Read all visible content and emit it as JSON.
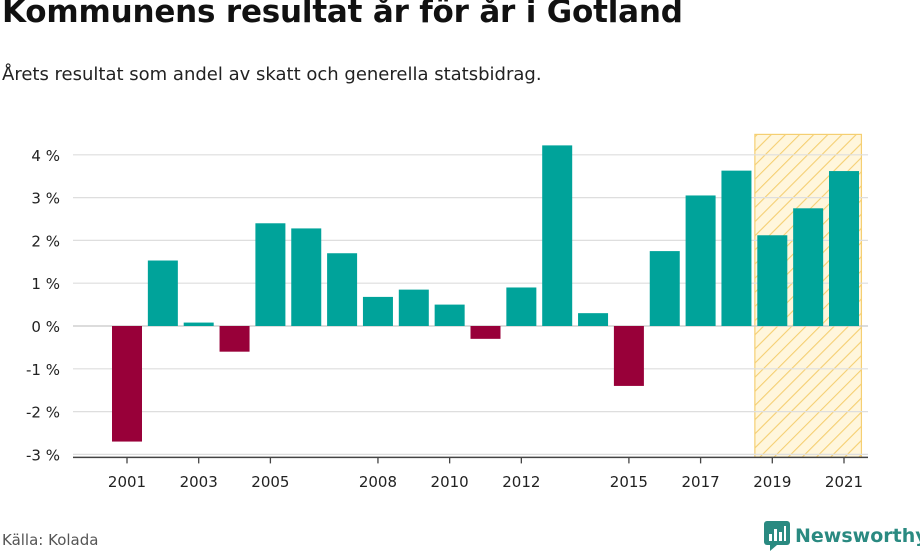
{
  "header": {
    "title": "Kommunens resultat år för år i Gotland",
    "subtitle": "Årets resultat som andel av skatt och generella statsbidrag."
  },
  "footer": {
    "source": "Källa: Kolada",
    "brand": "Newsworthy"
  },
  "colors": {
    "positive": "#00a39a",
    "negative": "#980039",
    "highlight_fill": "#fff6dc",
    "highlight_stroke": "#f5cf72",
    "brand": "#2a8a81"
  },
  "chart_data": {
    "type": "bar",
    "categories": [
      "2001",
      "2002",
      "2003",
      "2004",
      "2005",
      "2006",
      "2007",
      "2008",
      "2009",
      "2010",
      "2011",
      "2012",
      "2013",
      "2014",
      "2015",
      "2016",
      "2017",
      "2018",
      "2019",
      "2020",
      "2021"
    ],
    "values": [
      -2.7,
      1.53,
      0.08,
      -0.6,
      2.4,
      2.28,
      1.7,
      0.68,
      0.85,
      0.5,
      -0.3,
      0.9,
      4.22,
      0.3,
      -1.4,
      1.75,
      3.05,
      3.63,
      2.12,
      2.75,
      3.62
    ],
    "x_tick_labels": [
      "2001",
      "2003",
      "2005",
      "2008",
      "2010",
      "2012",
      "2015",
      "2017",
      "2019",
      "2021"
    ],
    "y_ticks": [
      4,
      3,
      2,
      1,
      0,
      -1,
      -2,
      -3
    ],
    "y_tick_labels": [
      "4 %",
      "3 %",
      "2 %",
      "1 %",
      "0 %",
      "-1 %",
      "-2 %",
      "-3 %"
    ],
    "ylim": [
      -3,
      4.5
    ],
    "highlight_range": [
      "2019",
      "2021"
    ],
    "grid": true,
    "legend": "none"
  }
}
